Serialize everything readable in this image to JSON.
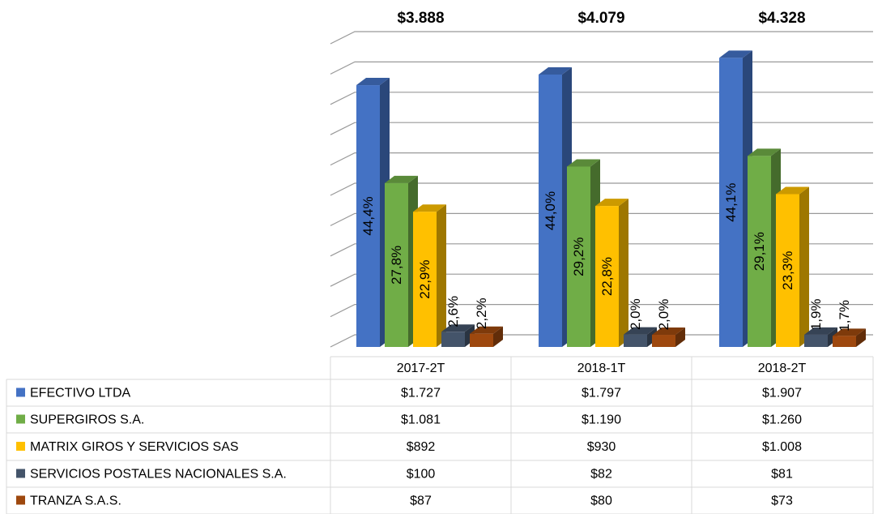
{
  "chart_data": {
    "type": "bar3d",
    "categories": [
      "2017-2T",
      "2018-1T",
      "2018-2T"
    ],
    "totals": [
      3888,
      4079,
      4328
    ],
    "total_labels": [
      "$3.888",
      "$4.079",
      "$4.328"
    ],
    "ylim": [
      0,
      2000
    ],
    "yticks": [
      0,
      200,
      400,
      600,
      800,
      1000,
      1200,
      1400,
      1600,
      1800,
      2000
    ],
    "grid": true,
    "series": [
      {
        "name": "EFECTIVO LTDA",
        "color": "#4472c4",
        "values": [
          1727,
          1797,
          1907
        ],
        "value_labels": [
          "$1.727",
          "$1.797",
          "$1.907"
        ],
        "shares": [
          44.4,
          44.0,
          44.1
        ],
        "share_labels": [
          "44,4%",
          "44,0%",
          "44,1%"
        ]
      },
      {
        "name": "SUPERGIROS S.A.",
        "color": "#70ad47",
        "values": [
          1081,
          1190,
          1260
        ],
        "value_labels": [
          "$1.081",
          "$1.190",
          "$1.260"
        ],
        "shares": [
          27.8,
          29.2,
          29.1
        ],
        "share_labels": [
          "27,8%",
          "29,2%",
          "29,1%"
        ]
      },
      {
        "name": "MATRIX GIROS Y SERVICIOS SAS",
        "color": "#ffc000",
        "values": [
          892,
          930,
          1008
        ],
        "value_labels": [
          "$892",
          "$930",
          "$1.008"
        ],
        "shares": [
          22.9,
          22.8,
          23.3
        ],
        "share_labels": [
          "22,9%",
          "22,8%",
          "23,3%"
        ]
      },
      {
        "name": "SERVICIOS POSTALES NACIONALES S.A.",
        "color": "#44546a",
        "values": [
          100,
          82,
          81
        ],
        "value_labels": [
          "$100",
          "$82",
          "$81"
        ],
        "shares": [
          2.6,
          2.0,
          1.9
        ],
        "share_labels": [
          "2,6%",
          "2,0%",
          "1,9%"
        ]
      },
      {
        "name": "TRANZA S.A.S.",
        "color": "#9e480e",
        "values": [
          87,
          80,
          73
        ],
        "value_labels": [
          "$87",
          "$80",
          "$73"
        ],
        "shares": [
          2.2,
          2.0,
          1.7
        ],
        "share_labels": [
          "2,2%",
          "2,0%",
          "1,7%"
        ]
      }
    ]
  }
}
